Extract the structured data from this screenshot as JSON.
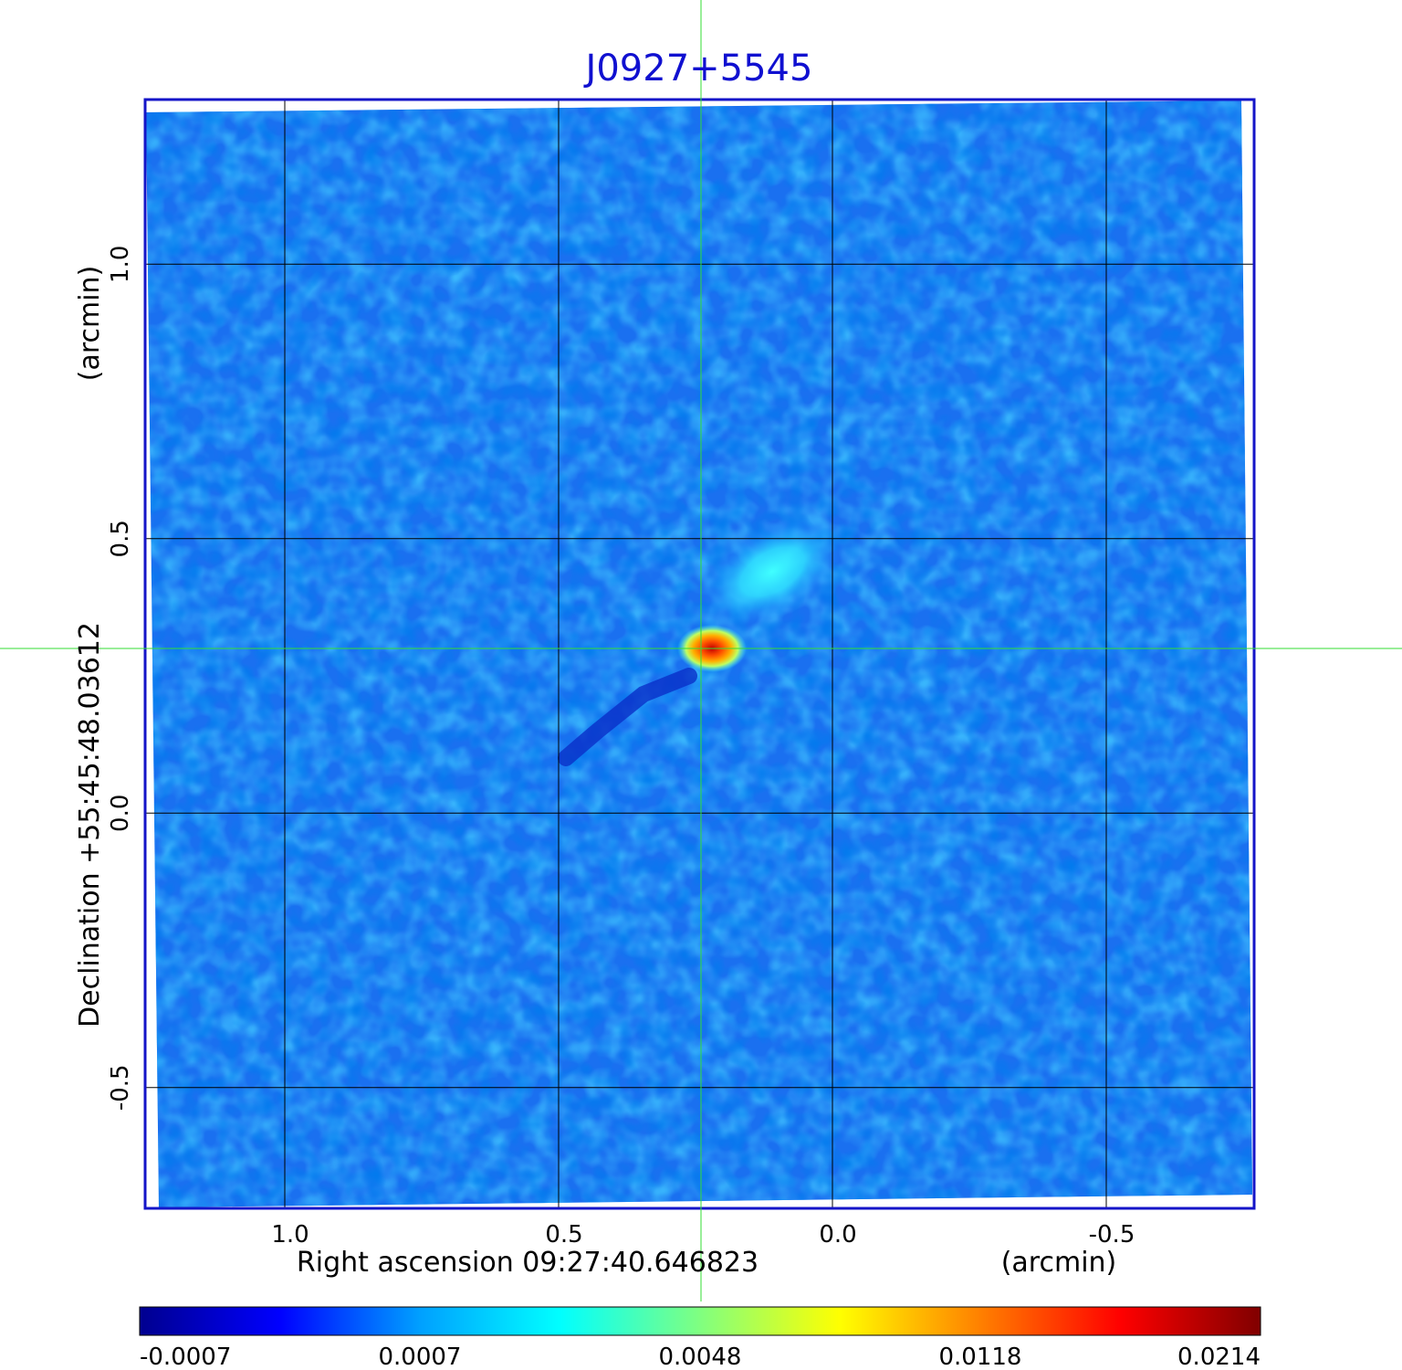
{
  "chart_data": {
    "type": "heatmap",
    "title": "J0927+5545",
    "xlabel": "Right ascension  09:27:40.646823",
    "xlabel_unit": "(arcmin)",
    "ylabel": "Declination  +55:45:48.03612",
    "ylabel_unit": "(arcmin)",
    "x_ticks": [
      1.0,
      0.5,
      0.0,
      -0.5
    ],
    "x_tick_labels": [
      "1.0",
      "0.5",
      "0.0",
      "-0.5"
    ],
    "y_ticks": [
      1.0,
      0.5,
      0.0,
      -0.5
    ],
    "y_tick_labels": [
      "1.0",
      "0.5",
      "0.0",
      "-0.5"
    ],
    "xlim": [
      1.255,
      -0.77
    ],
    "ylim": [
      -0.72,
      1.3
    ],
    "grid": true,
    "crosshair": {
      "x": 0.24,
      "y": 0.3,
      "color": "#33dd33"
    },
    "peak_source": {
      "x": 0.22,
      "y": 0.3,
      "value": 0.0214
    },
    "extended_emission": {
      "x": 0.11,
      "y": 0.44,
      "value": 0.0035
    },
    "colorbar": {
      "ticks": [
        -0.0007,
        0.0007,
        0.0048,
        0.0118,
        0.0214
      ],
      "tick_labels": [
        "-0.0007",
        "0.0007",
        "0.0048",
        "0.0118",
        "0.0214"
      ],
      "range": [
        -0.0007,
        0.0214
      ],
      "colormap": "jet",
      "stops": [
        "#00008f",
        "#0000ff",
        "#00a0ff",
        "#00ffff",
        "#80ff80",
        "#ffff00",
        "#ff8000",
        "#ff0000",
        "#800000"
      ]
    },
    "colors": {
      "frame": "#1515c8",
      "grid": "#000000",
      "background": "#1a70f0"
    }
  }
}
